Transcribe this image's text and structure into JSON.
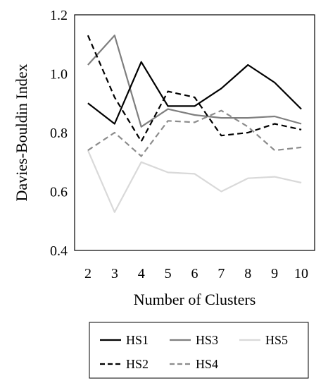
{
  "chart_data": {
    "type": "line",
    "title": "",
    "xlabel": "Number of Clusters",
    "ylabel": "Davies-Bouldin Index",
    "x": [
      2,
      3,
      4,
      5,
      6,
      7,
      8,
      9,
      10
    ],
    "ylim": [
      0.4,
      1.2
    ],
    "yticks": [
      "0.4",
      "0.6",
      "0.8",
      "1.0",
      "1.2"
    ],
    "grid": false,
    "legend_position": "bottom",
    "series": [
      {
        "name": "HS1",
        "color": "#000000",
        "dash": "solid",
        "values": [
          0.9,
          0.83,
          1.04,
          0.89,
          0.89,
          0.95,
          1.03,
          0.97,
          0.88
        ]
      },
      {
        "name": "HS2",
        "color": "#000000",
        "dash": "dashed",
        "values": [
          1.13,
          0.92,
          0.77,
          0.94,
          0.92,
          0.79,
          0.8,
          0.83,
          0.81
        ]
      },
      {
        "name": "HS3",
        "color": "#7f7f7f",
        "dash": "solid",
        "values": [
          1.03,
          1.13,
          0.82,
          0.88,
          0.86,
          0.85,
          0.85,
          0.855,
          0.83
        ]
      },
      {
        "name": "HS4",
        "color": "#8c8c8c",
        "dash": "dashed",
        "values": [
          0.74,
          0.8,
          0.72,
          0.84,
          0.835,
          0.875,
          0.82,
          0.74,
          0.75
        ]
      },
      {
        "name": "HS5",
        "color": "#d9d9d9",
        "dash": "solid",
        "values": [
          0.74,
          0.53,
          0.7,
          0.665,
          0.66,
          0.6,
          0.645,
          0.65,
          0.63
        ]
      }
    ]
  }
}
